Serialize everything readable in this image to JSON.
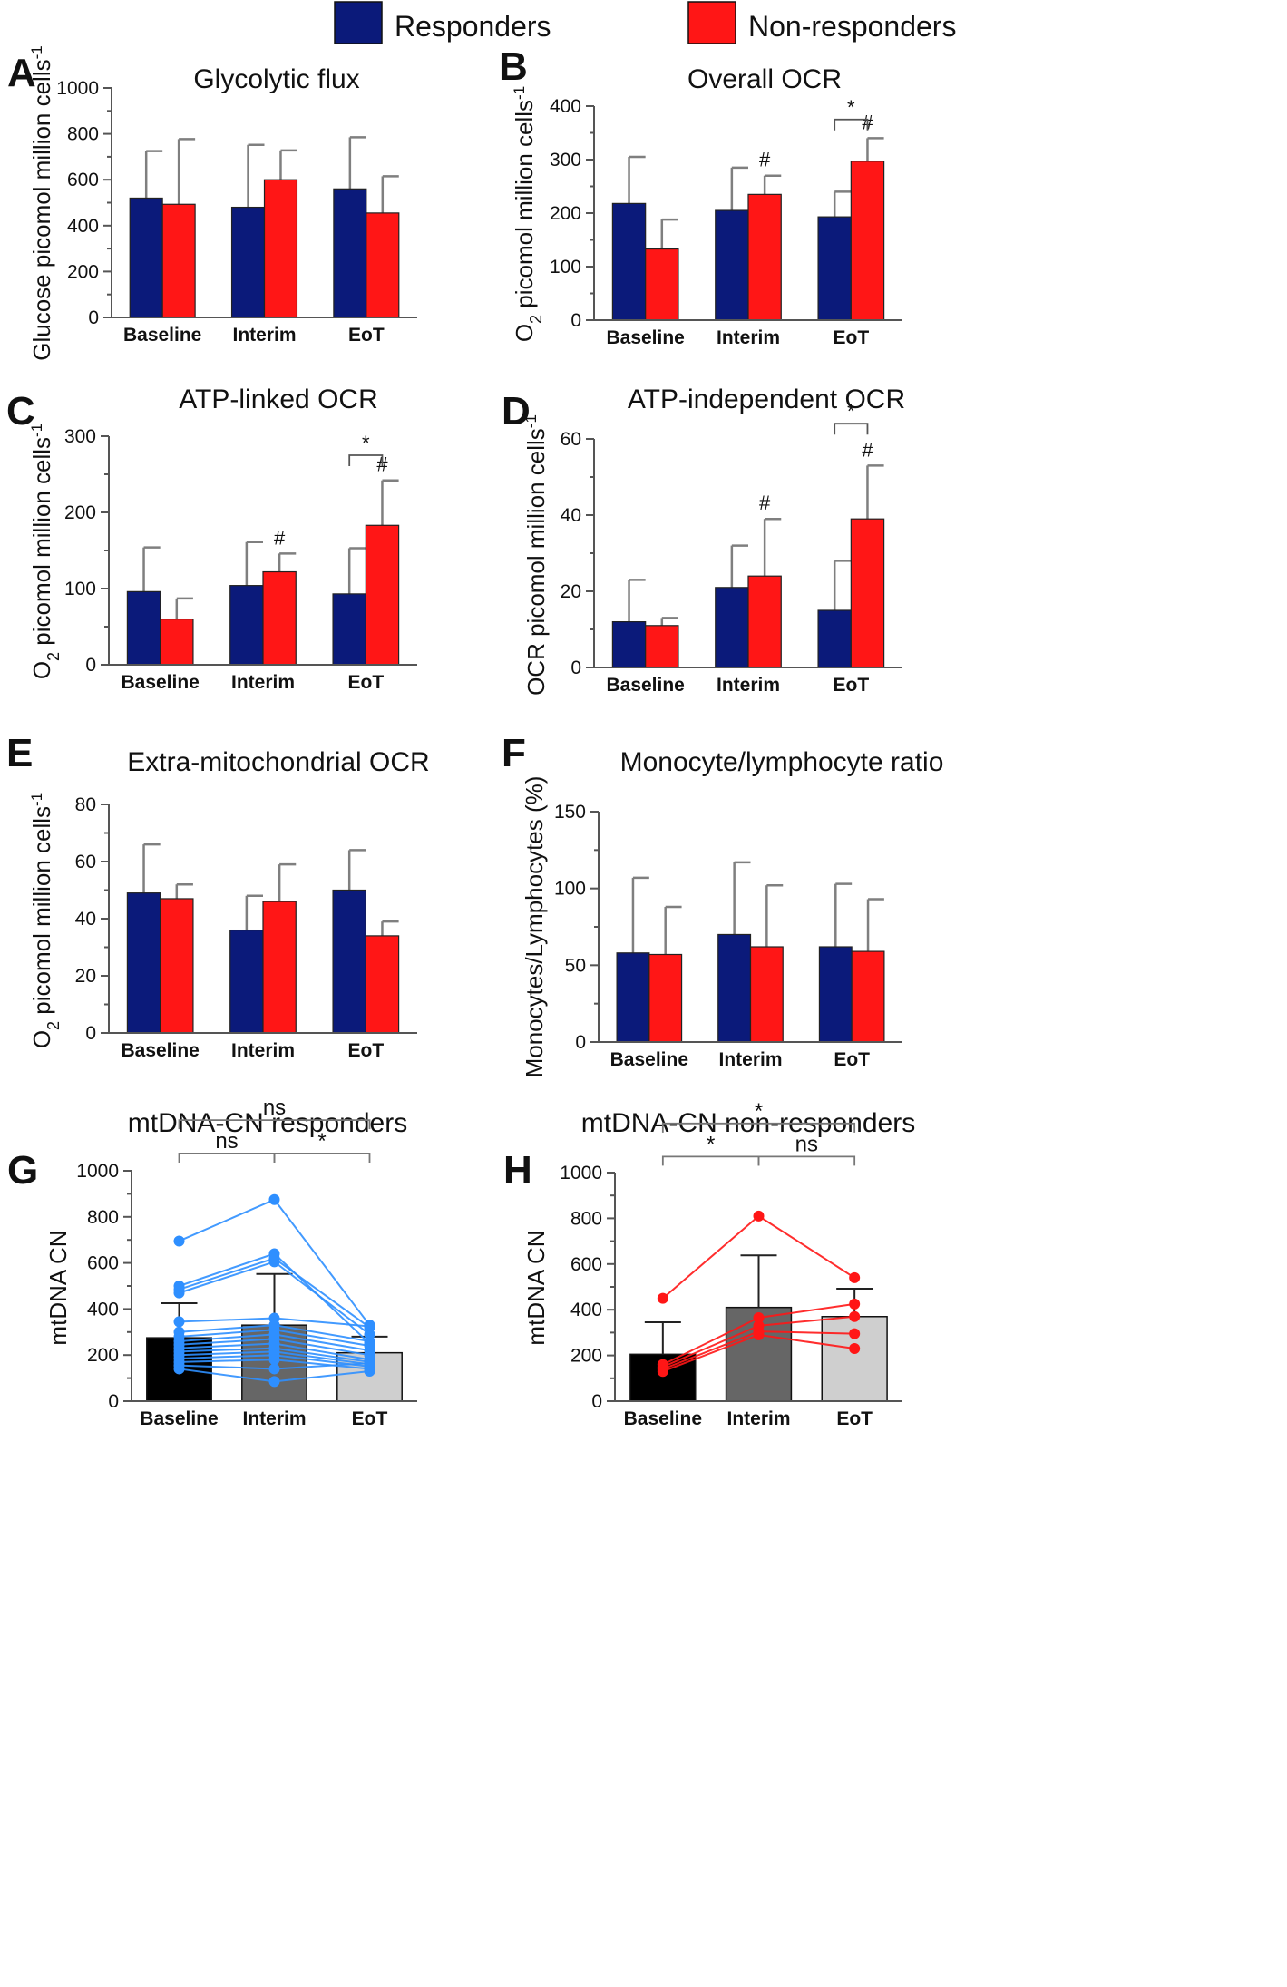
{
  "legend": [
    {
      "label": "Responders",
      "color": "#0b1a7a"
    },
    {
      "label": "Non-responders",
      "color": "#ff1616"
    }
  ],
  "colors": {
    "responders": "#0b1a7a",
    "non_responders": "#ff1616",
    "error_bar": "#7f7f7f",
    "resp_lines": "#2e8fff",
    "nonresp_lines": "#ff1616",
    "g_bars": [
      "#000000",
      "#666666",
      "#cfcfcf"
    ]
  },
  "chart_data": [
    {
      "id": "A",
      "letter": "A",
      "type": "bar",
      "title": "Glycolytic flux",
      "ylabel": "Glucose picomol million cells",
      "ylabel_sup": "-1",
      "categories": [
        "Baseline",
        "Interim",
        "EoT"
      ],
      "ylim": [
        0,
        1000
      ],
      "yticks": [
        0,
        200,
        400,
        600,
        800,
        1000
      ],
      "series": [
        {
          "name": "Responders",
          "values": [
            520,
            480,
            560
          ],
          "err": [
            725,
            752,
            785
          ]
        },
        {
          "name": "Non-responders",
          "values": [
            493,
            600,
            455
          ],
          "err": [
            777,
            728,
            615
          ]
        }
      ],
      "markers": [],
      "brackets": []
    },
    {
      "id": "B",
      "letter": "B",
      "type": "bar",
      "title": "Overall OCR",
      "ylabel_prefix": "O",
      "ylabel_sub": "2",
      "ylabel": " picomol million cells",
      "ylabel_sup": "-1",
      "categories": [
        "Baseline",
        "Interim",
        "EoT"
      ],
      "ylim": [
        0,
        400
      ],
      "yticks": [
        0,
        100,
        200,
        300,
        400
      ],
      "series": [
        {
          "name": "Responders",
          "values": [
            218,
            205,
            193
          ],
          "err": [
            305,
            285,
            240
          ]
        },
        {
          "name": "Non-responders",
          "values": [
            133,
            235,
            297
          ],
          "err": [
            188,
            270,
            340
          ]
        }
      ],
      "markers": [
        {
          "cat": 1,
          "series": 1,
          "text": "#"
        },
        {
          "cat": 2,
          "series": 1,
          "text": "#"
        }
      ],
      "brackets": [
        {
          "cat": 2,
          "text": "*",
          "y": 375
        }
      ]
    },
    {
      "id": "C",
      "letter": "C",
      "type": "bar",
      "title": "ATP-linked OCR",
      "ylabel_prefix": "O",
      "ylabel_sub": "2",
      "ylabel": " picomol million cells",
      "ylabel_sup": "-1",
      "categories": [
        "Baseline",
        "Interim",
        "EoT"
      ],
      "ylim": [
        0,
        300
      ],
      "yticks": [
        0,
        100,
        200,
        300
      ],
      "series": [
        {
          "name": "Responders",
          "values": [
            96,
            104,
            93
          ],
          "err": [
            154,
            161,
            153
          ]
        },
        {
          "name": "Non-responders",
          "values": [
            60,
            122,
            183
          ],
          "err": [
            87,
            146,
            242
          ]
        }
      ],
      "markers": [
        {
          "cat": 1,
          "series": 1,
          "text": "#"
        },
        {
          "cat": 2,
          "series": 1,
          "text": "#"
        }
      ],
      "brackets": [
        {
          "cat": 2,
          "text": "*",
          "y": 275
        }
      ]
    },
    {
      "id": "D",
      "letter": "D",
      "type": "bar",
      "title": "ATP-independent OCR",
      "ylabel": "OCR picomol million cells",
      "ylabel_sup": "-1",
      "categories": [
        "Baseline",
        "Interim",
        "EoT"
      ],
      "ylim": [
        0,
        60
      ],
      "yticks": [
        0,
        20,
        40,
        60
      ],
      "series": [
        {
          "name": "Responders",
          "values": [
            12,
            21,
            15
          ],
          "err": [
            23,
            32,
            28
          ]
        },
        {
          "name": "Non-responders",
          "values": [
            11,
            24,
            39
          ],
          "err": [
            13,
            39,
            53
          ]
        }
      ],
      "markers": [
        {
          "cat": 1,
          "series": 1,
          "text": "#"
        },
        {
          "cat": 2,
          "series": 1,
          "text": "#"
        }
      ],
      "brackets": [
        {
          "cat": 2,
          "text": "*",
          "y": 64
        }
      ]
    },
    {
      "id": "E",
      "letter": "E",
      "type": "bar",
      "title": "Extra-mitochondrial OCR",
      "ylabel_prefix": "O",
      "ylabel_sub": "2",
      "ylabel": " picomol million cells",
      "ylabel_sup": "-1",
      "categories": [
        "Baseline",
        "Interim",
        "EoT"
      ],
      "ylim": [
        0,
        80
      ],
      "yticks": [
        0,
        20,
        40,
        60,
        80
      ],
      "series": [
        {
          "name": "Responders",
          "values": [
            49,
            36,
            50
          ],
          "err": [
            66,
            48,
            64
          ]
        },
        {
          "name": "Non-responders",
          "values": [
            47,
            46,
            34
          ],
          "err": [
            52,
            59,
            39
          ]
        }
      ],
      "markers": [],
      "brackets": []
    },
    {
      "id": "F",
      "letter": "F",
      "type": "bar",
      "title": "Monocyte/lymphocyte ratio",
      "ylabel": "Monocytes/Lymphocytes (%)",
      "categories": [
        "Baseline",
        "Interim",
        "EoT"
      ],
      "ylim": [
        0,
        150
      ],
      "yticks": [
        0,
        50,
        100,
        150
      ],
      "series": [
        {
          "name": "Responders",
          "values": [
            58,
            70,
            62
          ],
          "err": [
            107,
            117,
            103
          ]
        },
        {
          "name": "Non-responders",
          "values": [
            57,
            62,
            59
          ],
          "err": [
            88,
            102,
            93
          ]
        }
      ],
      "markers": [],
      "brackets": []
    },
    {
      "id": "G",
      "letter": "G",
      "type": "bar+paired",
      "title": "mtDNA-CN responders",
      "ylabel": "mtDNA CN",
      "categories": [
        "Baseline",
        "Interim",
        "EoT"
      ],
      "ylim": [
        0,
        1000
      ],
      "yticks": [
        0,
        200,
        400,
        600,
        800,
        1000
      ],
      "values": [
        275,
        330,
        210
      ],
      "err": [
        425,
        552,
        280
      ],
      "subjects": [
        [
          695,
          875,
          330
        ],
        [
          500,
          640,
          250
        ],
        [
          485,
          620,
          320
        ],
        [
          470,
          605,
          290
        ],
        [
          345,
          360,
          325
        ],
        [
          300,
          330,
          260
        ],
        [
          280,
          310,
          240
        ],
        [
          260,
          290,
          220
        ],
        [
          245,
          270,
          200
        ],
        [
          230,
          250,
          180
        ],
        [
          215,
          230,
          170
        ],
        [
          200,
          215,
          160
        ],
        [
          185,
          200,
          150
        ],
        [
          170,
          180,
          140
        ],
        [
          155,
          140,
          165
        ],
        [
          140,
          85,
          130
        ]
      ],
      "brackets": [
        {
          "from": 0,
          "to": 1,
          "text": "ns",
          "y": 1075
        },
        {
          "from": 1,
          "to": 2,
          "text": "*",
          "y": 1075
        },
        {
          "from": 0,
          "to": 2,
          "text": "ns",
          "y": 1220
        }
      ]
    },
    {
      "id": "H",
      "letter": "H",
      "type": "bar+paired",
      "title": "mtDNA-CN non-responders",
      "ylabel": "mtDNA CN",
      "categories": [
        "Baseline",
        "Interim",
        "EoT"
      ],
      "ylim": [
        0,
        1000
      ],
      "yticks": [
        0,
        200,
        400,
        600,
        800,
        1000
      ],
      "values": [
        205,
        410,
        370
      ],
      "err": [
        345,
        638,
        492
      ],
      "subjects": [
        [
          450,
          810,
          540
        ],
        [
          160,
          365,
          425
        ],
        [
          150,
          330,
          370
        ],
        [
          140,
          305,
          295
        ],
        [
          130,
          290,
          230
        ]
      ],
      "brackets": [
        {
          "from": 0,
          "to": 1,
          "text": "*",
          "y": 1070
        },
        {
          "from": 1,
          "to": 2,
          "text": "ns",
          "y": 1070
        },
        {
          "from": 0,
          "to": 2,
          "text": "*",
          "y": 1215
        }
      ]
    }
  ]
}
